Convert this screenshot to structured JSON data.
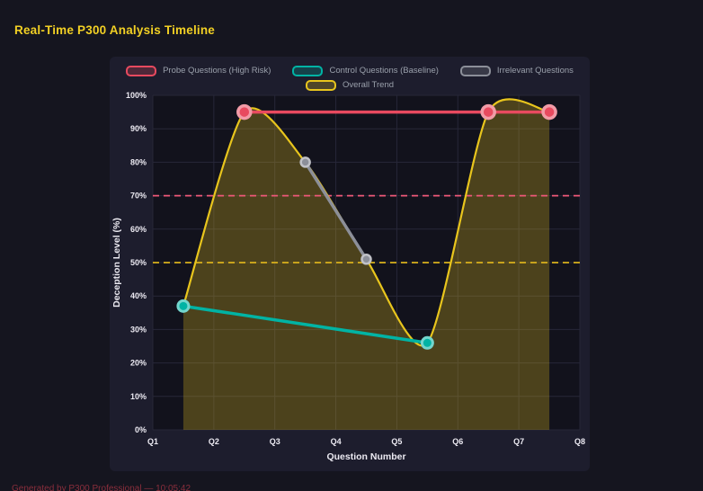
{
  "page": {
    "title": "Real-Time P300 Analysis Timeline",
    "footer": "Generated by P300 Professional — 10:05:42"
  },
  "colors": {
    "background": "#15151f",
    "panel": "#1d1d2d",
    "plot_bg": "#12121c",
    "grid": "#272738",
    "title": "#f2d024",
    "probe": "#e84a5f",
    "control": "#00b3a4",
    "irrelevant": "#8c8f99",
    "trend": "#e8c51d",
    "trend_fill": "rgba(232,197,29,0.27)",
    "threshold_high": "#ee5878",
    "threshold_mid": "#d9b11c",
    "tick_text": "#eceaf2",
    "legend_text": "#9aa0ab",
    "footer_text": "#8a2e3c"
  },
  "chart_data": {
    "type": "line",
    "title": "Real-Time P300 Analysis Timeline",
    "xlabel": "Question Number",
    "ylabel": "Deception Level (%)",
    "x_ticks": [
      "Q1",
      "Q2",
      "Q3",
      "Q4",
      "Q5",
      "Q6",
      "Q7",
      "Q8"
    ],
    "x_range": [
      1,
      8
    ],
    "ylim": [
      0,
      100
    ],
    "y_tick_step": 10,
    "y_tick_suffix": "%",
    "grid": true,
    "legend_position": "top",
    "series": [
      {
        "name": "Probe Questions (High Risk)",
        "color_key": "probe",
        "x": [
          2.5,
          6.5,
          7.5
        ],
        "values": [
          95,
          95,
          95
        ]
      },
      {
        "name": "Control Questions (Baseline)",
        "color_key": "control",
        "x": [
          1.5,
          5.5
        ],
        "values": [
          37,
          26
        ]
      },
      {
        "name": "Irrelevant Questions",
        "color_key": "irrelevant",
        "x": [
          3.5,
          4.5
        ],
        "values": [
          80,
          51
        ]
      },
      {
        "name": "Overall Trend",
        "color_key": "trend",
        "smooth": true,
        "area": true,
        "x": [
          1.5,
          2.5,
          3.5,
          4.5,
          5.5,
          6.5,
          7.5
        ],
        "values": [
          37,
          95,
          80,
          51,
          26,
          95,
          95
        ]
      }
    ],
    "thresholds": [
      {
        "value": 70,
        "color_key": "threshold_high",
        "style": "dashed"
      },
      {
        "value": 50,
        "color_key": "threshold_mid",
        "style": "dashed"
      }
    ]
  }
}
